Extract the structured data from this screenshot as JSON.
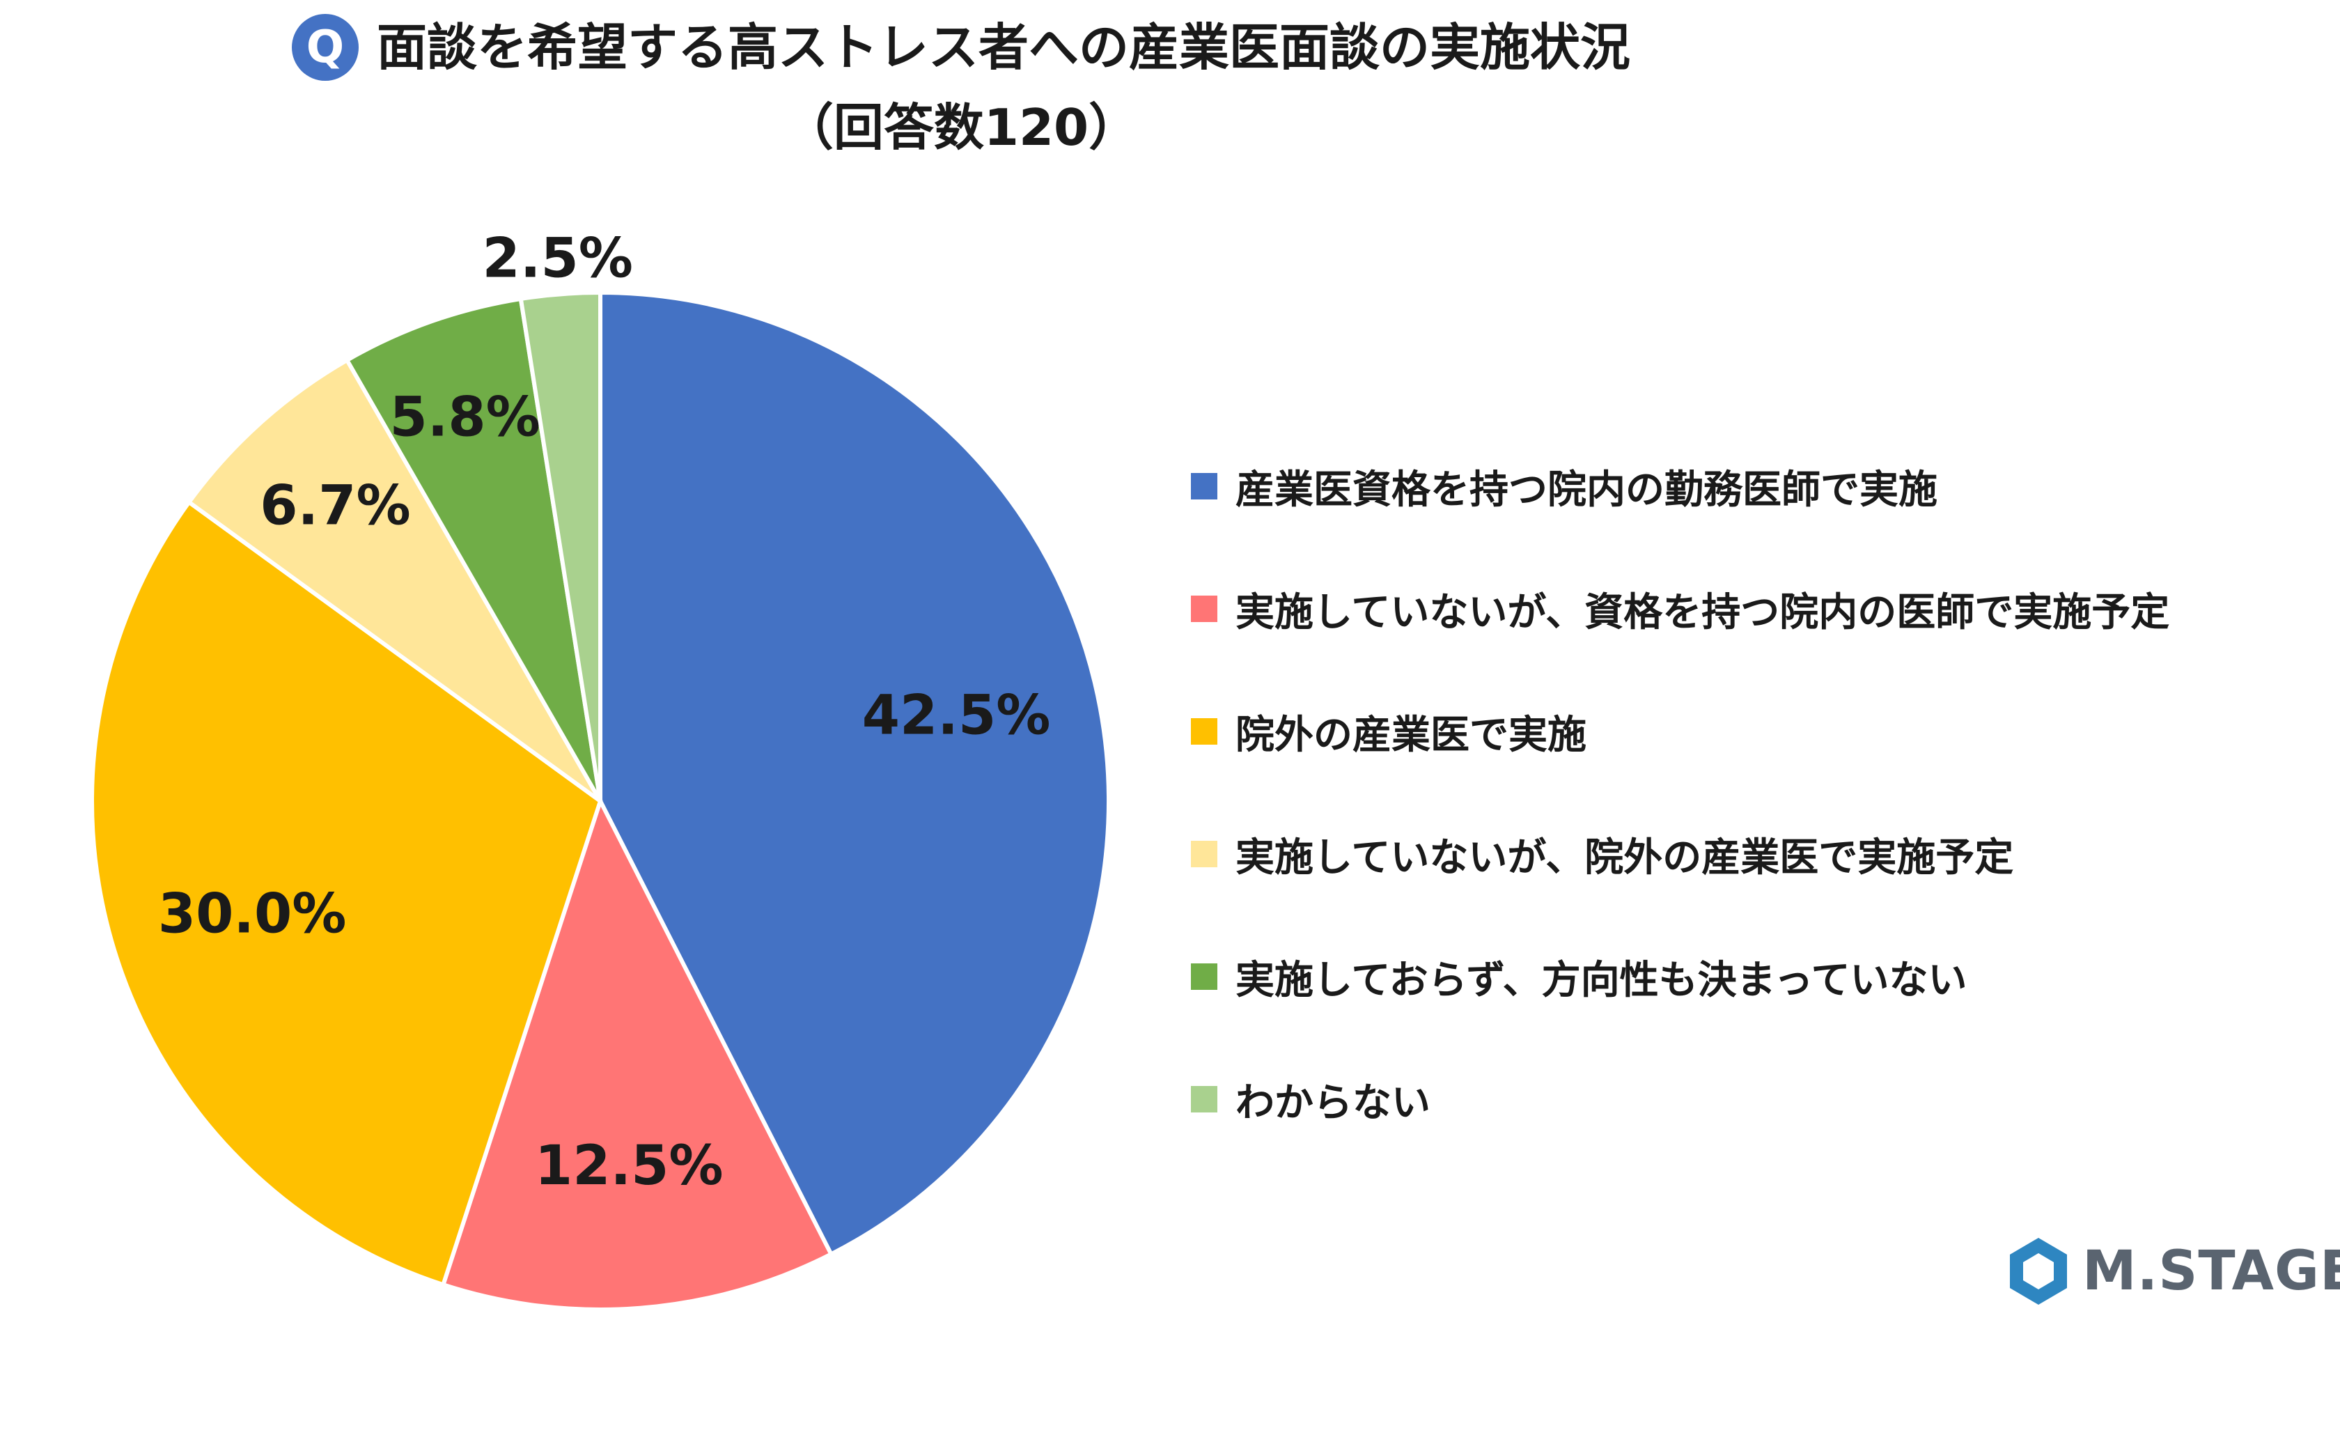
{
  "title": {
    "badge": "Q",
    "line1": "面談を希望する高ストレス者への産業医面談の実施状況",
    "line2": "（回答数120）"
  },
  "chart_data": {
    "type": "pie",
    "title": "面談を希望する高ストレス者への産業医面談の実施状況（回答数120）",
    "legend_position": "right",
    "slices": [
      {
        "label": "産業医資格を持つ院内の勤務医師で実施",
        "value": 42.5,
        "display": "42.5%",
        "color": "#4472c4"
      },
      {
        "label": "実施していないが、資格を持つ院内の医師で実施予定",
        "value": 12.5,
        "display": "12.5%",
        "color": "#ff7575"
      },
      {
        "label": "院外の産業医で実施",
        "value": 30.0,
        "display": "30.0%",
        "color": "#ffc000"
      },
      {
        "label": "実施していないが、院外の産業医で実施予定",
        "value": 6.7,
        "display": "6.7%",
        "color": "#ffe699"
      },
      {
        "label": "実施しておらず、方向性も決まっていない",
        "value": 5.8,
        "display": "5.8%",
        "color": "#70ad47"
      },
      {
        "label": "わからない",
        "value": 2.5,
        "display": "2.5%",
        "color": "#a9d18e"
      }
    ]
  },
  "logo": {
    "text": "M.STAGE",
    "color": "#5a6470",
    "mark_color": "#2e86c1"
  }
}
